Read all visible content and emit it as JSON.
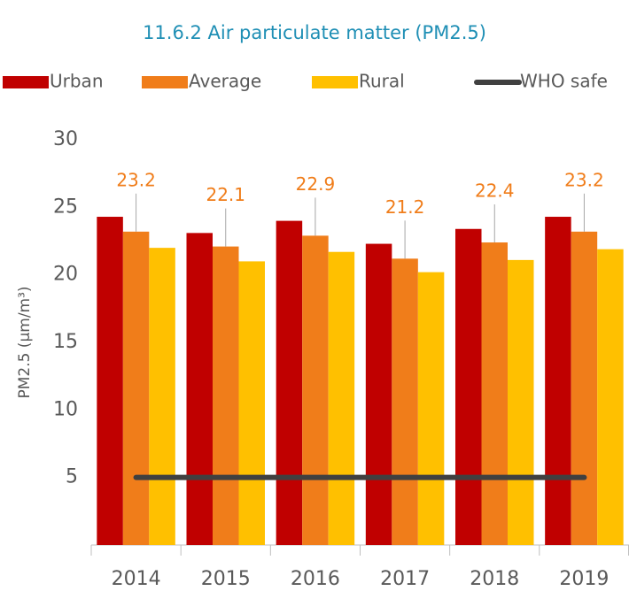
{
  "chart_data": {
    "type": "bar",
    "title": "11.6.2 Air particulate matter (PM2.5)",
    "y_label": "PM2.5 (μm/m³)",
    "categories": [
      "2014",
      "2015",
      "2016",
      "2017",
      "2018",
      "2019"
    ],
    "series": [
      {
        "name": "Urban",
        "color": "#c00000",
        "values": [
          24.3,
          23.1,
          24.0,
          22.3,
          23.4,
          24.3
        ]
      },
      {
        "name": "Average",
        "color": "#f07d1a",
        "values": [
          23.2,
          22.1,
          22.9,
          21.2,
          22.4,
          23.2
        ],
        "data_labels": true
      },
      {
        "name": "Rural",
        "color": "#ffc000",
        "values": [
          22.0,
          21.0,
          21.7,
          20.2,
          21.1,
          21.9
        ]
      },
      {
        "name": "WHO safe",
        "color": "#404040",
        "type": "line",
        "values": [
          5,
          5,
          5,
          5,
          5,
          5
        ]
      }
    ],
    "ylim": [
      0,
      30
    ],
    "yticks": [
      5,
      10,
      15,
      20,
      25,
      30
    ],
    "grid": false,
    "legend": "top"
  }
}
